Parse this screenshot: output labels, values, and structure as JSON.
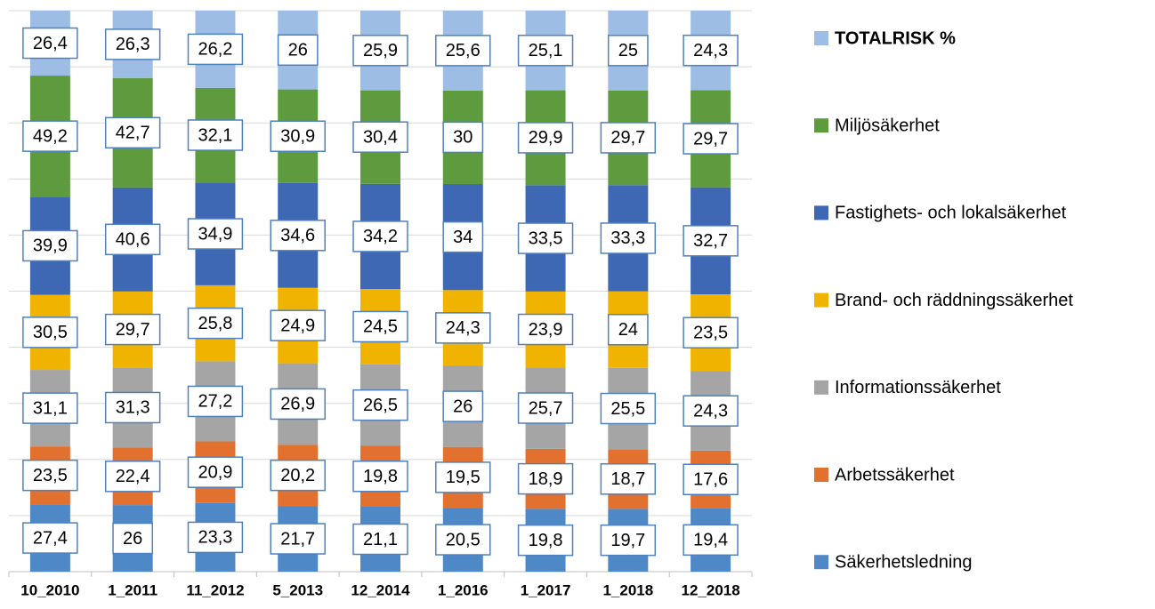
{
  "chart_data": {
    "type": "bar",
    "stacked": "percent",
    "categories": [
      "10_2010",
      "1_2011",
      "11_2012",
      "5_2013",
      "12_2014",
      "1_2016",
      "1_2017",
      "1_2018",
      "12_2018"
    ],
    "series": [
      {
        "name": "Säkerhetsledning",
        "color": "#4f88c6",
        "values": [
          27.4,
          26,
          23.3,
          21.7,
          21.1,
          20.5,
          19.8,
          19.7,
          19.4
        ],
        "value_labels": [
          "27,4",
          "26",
          "23,3",
          "21,7",
          "21,1",
          "20,5",
          "19,8",
          "19,7",
          "19,4"
        ]
      },
      {
        "name": "Arbetssäkerhet",
        "color": "#e2712f",
        "values": [
          23.5,
          22.4,
          20.9,
          20.2,
          19.8,
          19.5,
          18.9,
          18.7,
          17.6
        ],
        "value_labels": [
          "23,5",
          "22,4",
          "20,9",
          "20,2",
          "19,8",
          "19,5",
          "18,9",
          "18,7",
          "17,6"
        ]
      },
      {
        "name": "Informationssäkerhet",
        "color": "#a5a5a5",
        "values": [
          31.1,
          31.3,
          27.2,
          26.9,
          26.5,
          26,
          25.7,
          25.5,
          24.3
        ],
        "value_labels": [
          "31,1",
          "31,3",
          "27,2",
          "26,9",
          "26,5",
          "26",
          "25,7",
          "25,5",
          "24,3"
        ]
      },
      {
        "name": "Brand- och räddningssäkerhet",
        "color": "#f0b400",
        "values": [
          30.5,
          29.7,
          25.8,
          24.9,
          24.5,
          24.3,
          23.9,
          24,
          23.5
        ],
        "value_labels": [
          "30,5",
          "29,7",
          "25,8",
          "24,9",
          "24,5",
          "24,3",
          "23,9",
          "24",
          "23,5"
        ]
      },
      {
        "name": "Fastighets- och lokalsäkerhet",
        "color": "#3e68b4",
        "values": [
          39.9,
          40.6,
          34.9,
          34.6,
          34.2,
          34,
          33.5,
          33.3,
          32.7
        ],
        "value_labels": [
          "39,9",
          "40,6",
          "34,9",
          "34,6",
          "34,2",
          "34",
          "33,5",
          "33,3",
          "32,7"
        ]
      },
      {
        "name": "Miljösäkerhet",
        "color": "#5e9b3f",
        "values": [
          49.2,
          42.7,
          32.1,
          30.9,
          30.4,
          30,
          29.9,
          29.7,
          29.7
        ],
        "value_labels": [
          "49,2",
          "42,7",
          "32,1",
          "30,9",
          "30,4",
          "30",
          "29,9",
          "29,7",
          "29,7"
        ]
      },
      {
        "name": "TOTALRISK %",
        "color": "#9dbde4",
        "values": [
          26.4,
          26.3,
          26.2,
          26,
          25.9,
          25.6,
          25.1,
          25,
          24.3
        ],
        "value_labels": [
          "26,4",
          "26,3",
          "26,2",
          "26",
          "25,9",
          "25,6",
          "25,1",
          "25",
          "24,3"
        ]
      }
    ],
    "ylim": [
      0,
      100
    ],
    "yticks": [
      0,
      10,
      20,
      30,
      40,
      50,
      60,
      70,
      80,
      90,
      100
    ],
    "grid": true,
    "legend": "right"
  }
}
